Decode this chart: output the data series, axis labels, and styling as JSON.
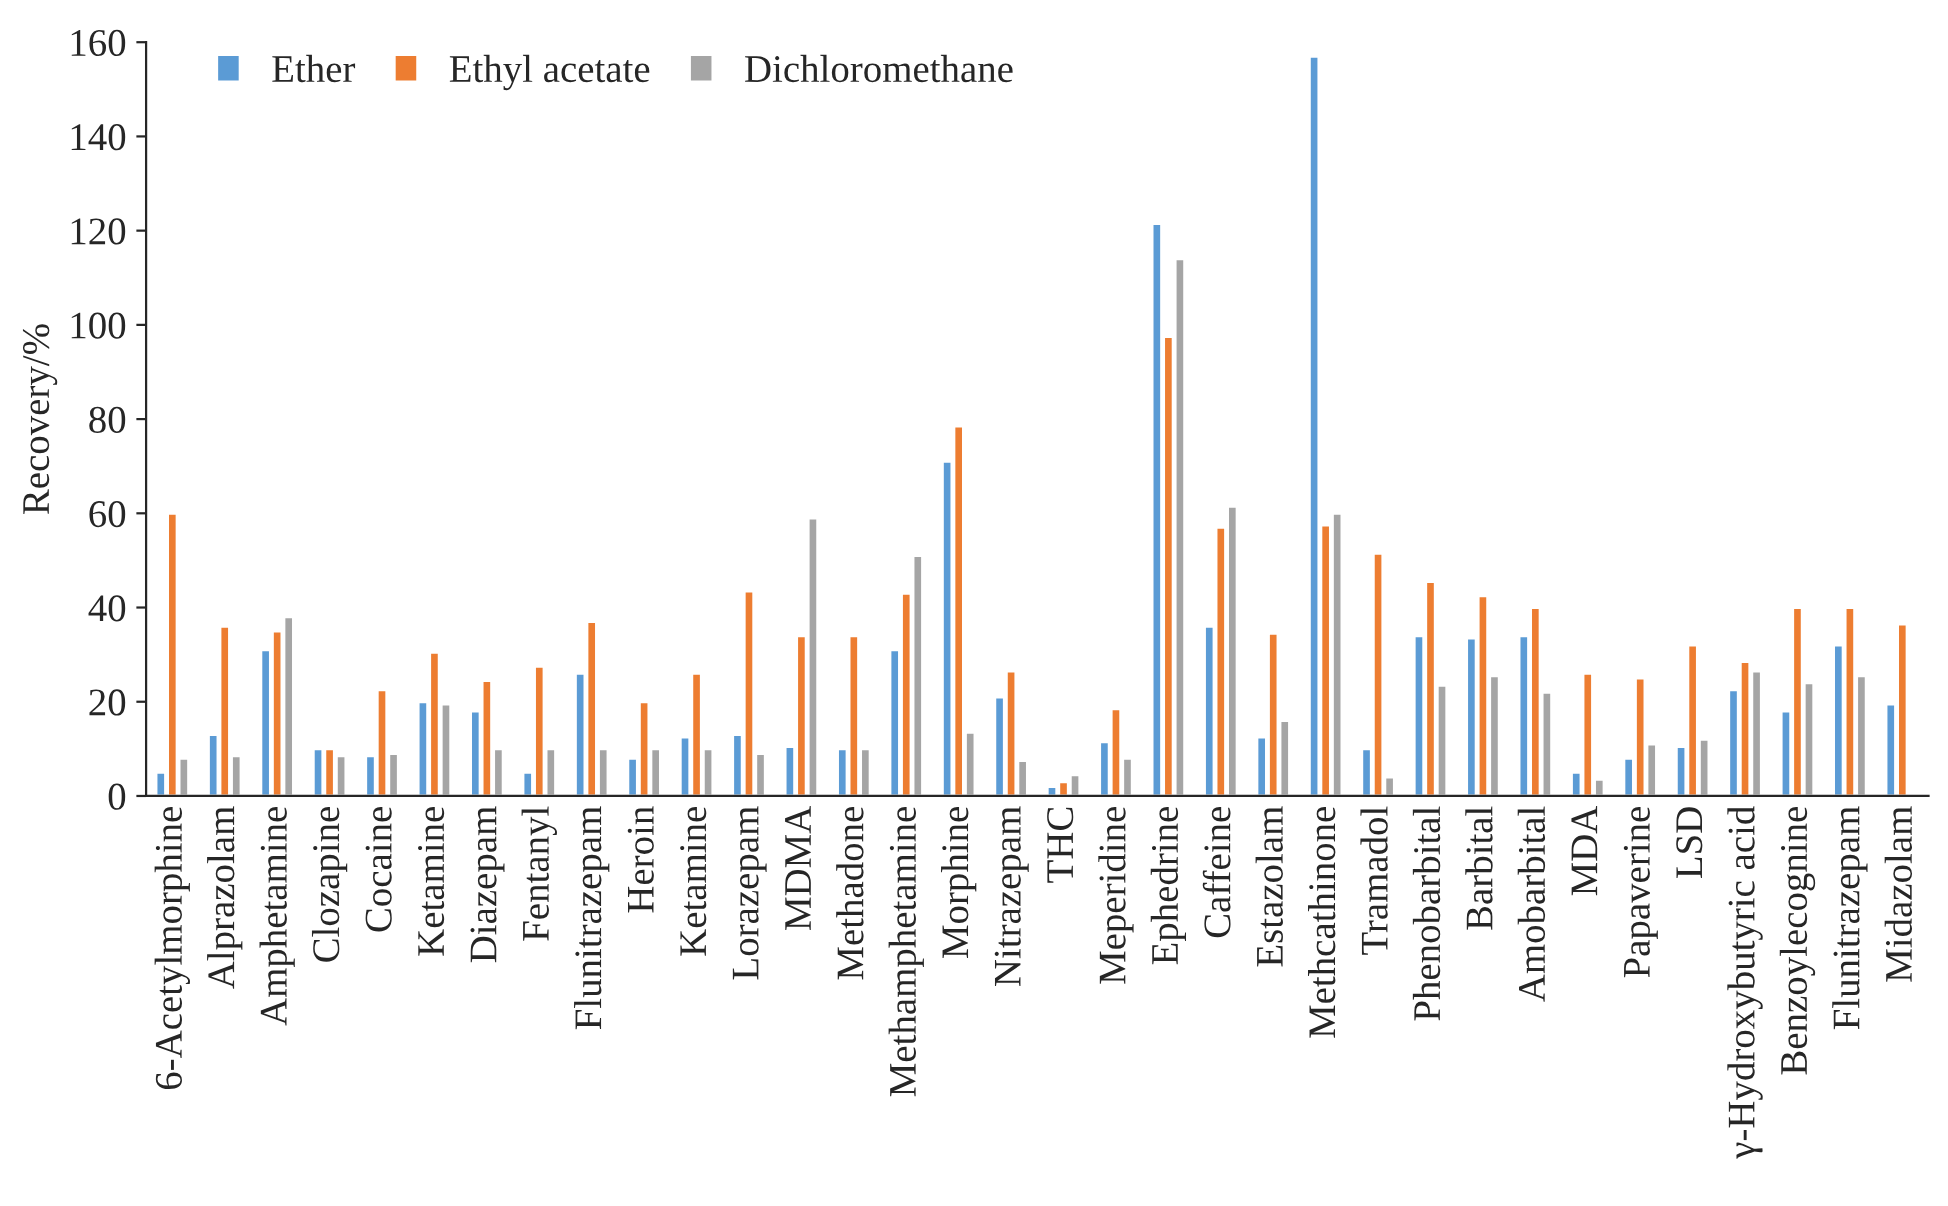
{
  "chart_data": {
    "type": "bar",
    "ylabel": "Recovery/%",
    "categories": [
      "6-Acetylmorphine",
      "Alprazolam",
      "Amphetamine",
      "Clozapine",
      "Cocaine",
      "Ketamine",
      "Diazepam",
      "Fentanyl",
      "Flunitrazepam",
      "Heroin",
      "Ketamine",
      "Lorazepam",
      "MDMA",
      "Methadone",
      "Methamphetamine",
      "Morphine",
      "Nitrazepam",
      "THC",
      "Meperidine",
      "Ephedrine",
      "Caffeine",
      "Estazolam",
      "Methcathinone",
      "Tramadol",
      "Phenobarbital",
      "Barbital",
      "Amobarbital",
      "MDA",
      "Papaverine",
      "LSD",
      "γ-Hydroxybutyric acid",
      "Benzoylecognine",
      "Flunitrazepam",
      "Midazolam"
    ],
    "series": [
      {
        "name": "Ether",
        "color": "#5b9bd5",
        "values": [
          5,
          13,
          31,
          10,
          8.5,
          20,
          18,
          5,
          26,
          8,
          12.5,
          13,
          10.5,
          10,
          31,
          71,
          21,
          2,
          11.5,
          121.5,
          36,
          12.5,
          157,
          10,
          34,
          33.5,
          34,
          5,
          8,
          10.5,
          22.5,
          18,
          32,
          19.5
        ]
      },
      {
        "name": "Ethyl acetate",
        "color": "#ed7d31",
        "values": [
          60,
          36,
          35,
          10,
          22.5,
          30.5,
          24.5,
          27.5,
          37,
          20,
          26,
          43.5,
          34,
          34,
          43,
          78.5,
          26.5,
          3,
          18.5,
          97.5,
          57,
          34.5,
          57.5,
          51.5,
          45.5,
          42.5,
          40,
          26,
          25,
          32,
          28.5,
          40,
          40,
          36.5
        ]
      },
      {
        "name": "Dichloromethane",
        "color": "#a5a5a5",
        "values": [
          8,
          8.5,
          38,
          8.5,
          9,
          19.5,
          10,
          10,
          10,
          10,
          10,
          9,
          59,
          10,
          51,
          13.5,
          7.5,
          4.5,
          8,
          114,
          61.5,
          16,
          60,
          4,
          23.5,
          25.5,
          22,
          3.5,
          11,
          12,
          26.5,
          24,
          25.5,
          null
        ]
      }
    ],
    "ylim": [
      0,
      160
    ],
    "yticks": [
      0,
      20,
      40,
      60,
      80,
      100,
      120,
      140,
      160
    ],
    "legend": "top left",
    "grid": false
  }
}
